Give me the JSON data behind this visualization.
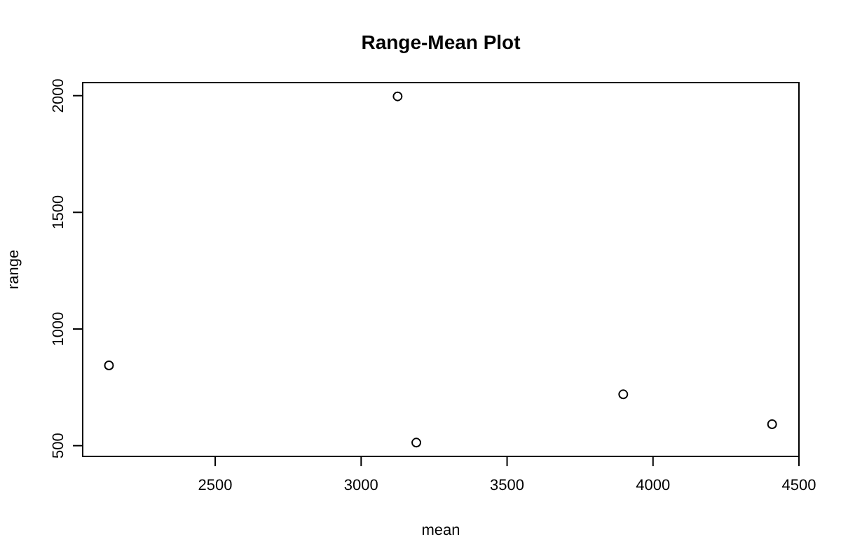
{
  "chart_data": {
    "type": "scatter",
    "title": "Range-Mean Plot",
    "xlabel": "mean",
    "ylabel": "range",
    "x": [
      2136,
      3125,
      3189,
      3898,
      4408
    ],
    "values": [
      844,
      1997,
      513,
      720,
      592
    ],
    "color": "#000000",
    "marker": "circle",
    "xlim": [
      2046,
      4500
    ],
    "ylim": [
      454,
      2056
    ],
    "xticks": [
      2500,
      3000,
      3500,
      4000,
      4500
    ],
    "yticks": [
      500,
      1000,
      1500,
      2000
    ],
    "grid": false
  }
}
